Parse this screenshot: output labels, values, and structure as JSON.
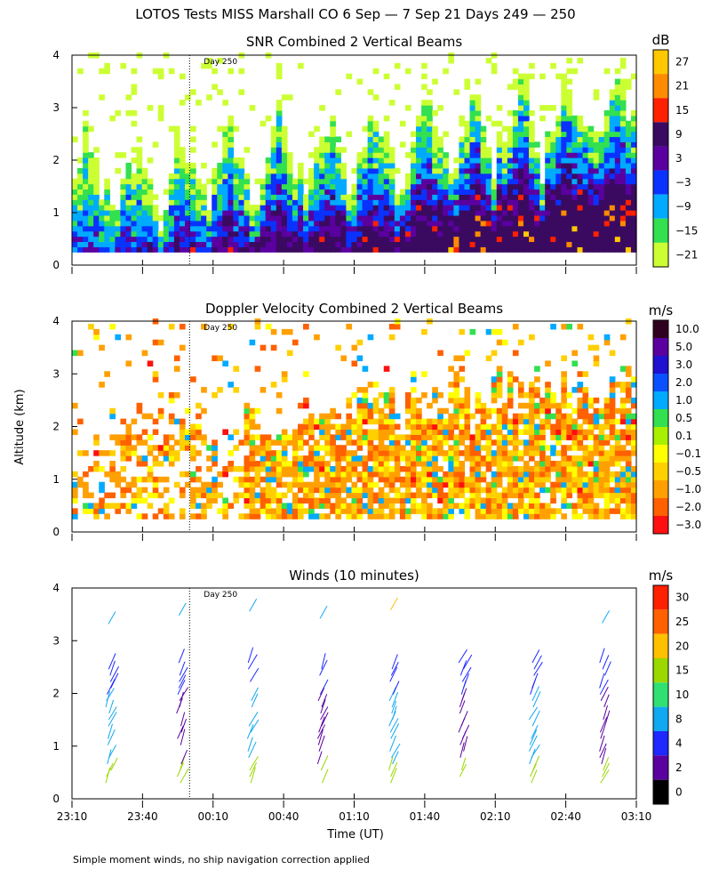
{
  "header": {
    "title": "LOTOS Tests MISS Marshall CO   6 Sep —  7 Sep 21 Days 249 — 250",
    "ylabel": "Altitude (km)",
    "xlabel": "Time (UT)",
    "footnote": "Simple moment winds, no ship navigation correction applied",
    "day_marker_label": "Day 250"
  },
  "chart_data": [
    {
      "type": "heatmap",
      "title": "SNR Combined 2 Vertical Beams",
      "colorbar_unit": "dB",
      "colorbar_levels": [
        "27",
        "21",
        "15",
        "9",
        "3",
        "−3",
        "−9",
        "−15",
        "−21"
      ],
      "colorbar_colors": [
        "#ffc800",
        "#ff8c00",
        "#ff2000",
        "#3a0a60",
        "#5a00a0",
        "#0a32ff",
        "#00aaff",
        "#32e050",
        "#ccff33"
      ],
      "x": {
        "range_hours": [
          23.1667,
          27.1667
        ],
        "tick_labels": [
          "23:10",
          "23:40",
          "00:10",
          "00:40",
          "01:10",
          "01:40",
          "02:10",
          "02:40",
          "03:10"
        ]
      },
      "y": {
        "range_km": [
          0,
          4
        ],
        "tick_labels": [
          "0",
          "1",
          "2",
          "3",
          "4"
        ]
      },
      "day_boundary_hours": 24.0
    },
    {
      "type": "heatmap",
      "title": "Doppler Velocity Combined 2 Vertical Beams",
      "colorbar_unit": "m/s",
      "colorbar_levels": [
        "10.0",
        "5.0",
        "3.0",
        "2.0",
        "1.0",
        "0.5",
        "0.1",
        "−0.1",
        "−0.5",
        "−1.0",
        "−2.0",
        "−3.0"
      ],
      "colorbar_colors": [
        "#300020",
        "#5a00a0",
        "#2010d0",
        "#0a50ff",
        "#00aaff",
        "#32e050",
        "#a8f000",
        "#ffff00",
        "#ffd000",
        "#ffa000",
        "#ff6000",
        "#ff1010"
      ],
      "x": {
        "range_hours": [
          23.1667,
          27.1667
        ],
        "tick_labels": [
          "23:10",
          "23:40",
          "00:10",
          "00:40",
          "01:10",
          "01:40",
          "02:10",
          "02:40",
          "03:10"
        ]
      },
      "y": {
        "range_km": [
          0,
          4
        ],
        "tick_labels": [
          "0",
          "1",
          "2",
          "3",
          "4"
        ]
      },
      "day_boundary_hours": 24.0
    },
    {
      "type": "scatter",
      "title": "Winds (10 minutes)",
      "colorbar_unit": "m/s",
      "colorbar_levels": [
        "30",
        "25",
        "20",
        "15",
        "10",
        "8",
        "4",
        "2",
        "0"
      ],
      "colorbar_colors": [
        "#ff2000",
        "#ff6000",
        "#ffc000",
        "#9ad800",
        "#30e070",
        "#10a8f0",
        "#1e28ff",
        "#5a00a0",
        "#000000"
      ],
      "x": {
        "range_hours": [
          23.1667,
          27.1667
        ],
        "tick_labels": [
          "23:10",
          "23:40",
          "00:10",
          "00:40",
          "01:10",
          "01:40",
          "02:10",
          "02:40",
          "03:10"
        ]
      },
      "y": {
        "range_km": [
          0,
          4
        ],
        "tick_labels": [
          "0",
          "1",
          "2",
          "3",
          "4"
        ]
      },
      "day_boundary_hours": 24.0,
      "profile_times_hours": [
        23.5,
        24.0,
        24.5,
        25.0,
        25.5,
        26.0,
        26.5,
        27.0
      ]
    }
  ]
}
